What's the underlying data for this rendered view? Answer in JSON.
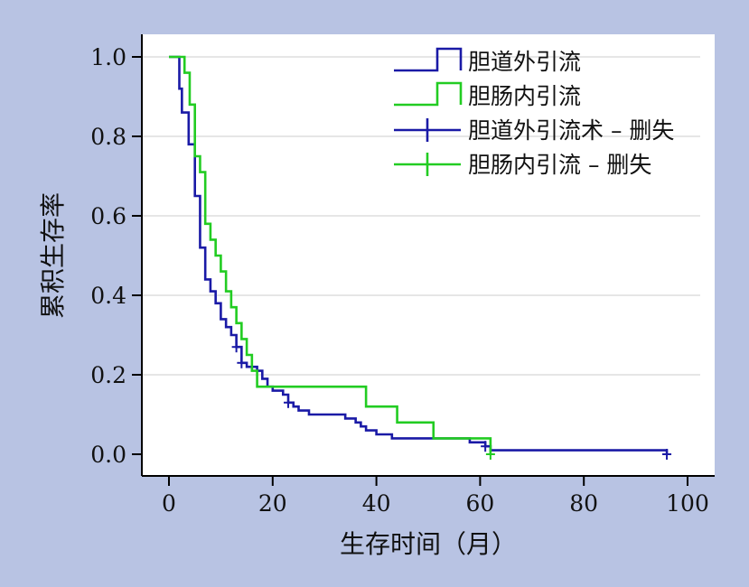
{
  "chart_data": {
    "type": "line",
    "xlabel": "生存时间（月）",
    "ylabel": "累积生存率",
    "xlim": [
      -5,
      105
    ],
    "ylim": [
      -0.05,
      1.05
    ],
    "xticks": [
      "0",
      "20",
      "40",
      "60",
      "80",
      "100"
    ],
    "yticks": [
      "0.0",
      "0.2",
      "0.4",
      "0.6",
      "0.8",
      "1.0"
    ],
    "grid": "horizontal",
    "legend_position": "top-right",
    "colors": {
      "blue": "#1a1aa6",
      "green": "#22cc22",
      "grid": "#dedede"
    },
    "legend": [
      {
        "label": "胆道外引流",
        "color": "#1a1aa6",
        "symbol": "step"
      },
      {
        "label": "胆肠内引流",
        "color": "#22cc22",
        "symbol": "step"
      },
      {
        "label": "胆道外引流术 – 删失",
        "color": "#1a1aa6",
        "symbol": "cross"
      },
      {
        "label": "胆肠内引流 – 删失",
        "color": "#22cc22",
        "symbol": "cross"
      }
    ],
    "series": [
      {
        "name": "胆道外引流",
        "color": "#1a1aa6",
        "points": [
          [
            0,
            1.0
          ],
          [
            2,
            0.92
          ],
          [
            2.5,
            0.86
          ],
          [
            3.8,
            0.78
          ],
          [
            5,
            0.65
          ],
          [
            6,
            0.52
          ],
          [
            7,
            0.44
          ],
          [
            8,
            0.41
          ],
          [
            9,
            0.38
          ],
          [
            10,
            0.34
          ],
          [
            11,
            0.32
          ],
          [
            12,
            0.3
          ],
          [
            13,
            0.27
          ],
          [
            14,
            0.23
          ],
          [
            15,
            0.22
          ],
          [
            17,
            0.21
          ],
          [
            18,
            0.19
          ],
          [
            19,
            0.17
          ],
          [
            20,
            0.16
          ],
          [
            22,
            0.15
          ],
          [
            23,
            0.13
          ],
          [
            24,
            0.12
          ],
          [
            25,
            0.11
          ],
          [
            27,
            0.1
          ],
          [
            34,
            0.09
          ],
          [
            36,
            0.08
          ],
          [
            37,
            0.07
          ],
          [
            38,
            0.06
          ],
          [
            40,
            0.05
          ],
          [
            43,
            0.04
          ],
          [
            58,
            0.03
          ],
          [
            61,
            0.02
          ],
          [
            62,
            0.01
          ],
          [
            96,
            0.0
          ]
        ],
        "censored": [
          [
            13,
            0.27
          ],
          [
            14,
            0.23
          ],
          [
            23,
            0.13
          ],
          [
            61,
            0.02
          ],
          [
            96,
            0.0
          ]
        ]
      },
      {
        "name": "胆肠内引流",
        "color": "#22cc22",
        "points": [
          [
            0,
            1.0
          ],
          [
            3,
            0.96
          ],
          [
            4,
            0.88
          ],
          [
            5,
            0.75
          ],
          [
            6,
            0.71
          ],
          [
            7,
            0.58
          ],
          [
            8,
            0.54
          ],
          [
            9,
            0.5
          ],
          [
            10,
            0.46
          ],
          [
            11,
            0.41
          ],
          [
            12,
            0.37
          ],
          [
            13,
            0.33
          ],
          [
            14,
            0.29
          ],
          [
            15,
            0.25
          ],
          [
            16,
            0.21
          ],
          [
            17,
            0.17
          ],
          [
            38,
            0.12
          ],
          [
            44,
            0.08
          ],
          [
            51,
            0.04
          ],
          [
            62,
            0.0
          ]
        ],
        "censored": [
          [
            62,
            0.0
          ]
        ]
      }
    ]
  }
}
